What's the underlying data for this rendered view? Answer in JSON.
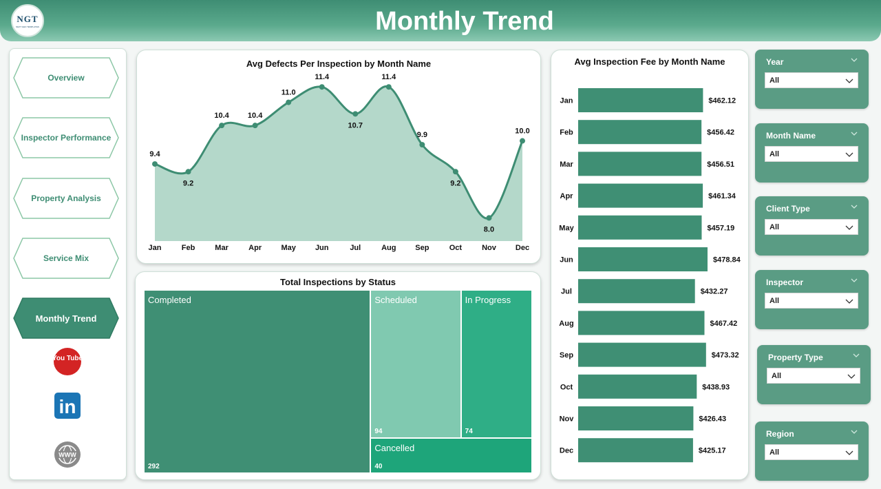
{
  "header": {
    "title": "Monthly Trend",
    "logo_text": "NGT",
    "logo_subtext": "NEXT GEN TEMPLATES"
  },
  "nav": {
    "items": [
      {
        "label": "Overview",
        "active": false
      },
      {
        "label": "Inspector Performance",
        "active": false
      },
      {
        "label": "Property Analysis",
        "active": false
      },
      {
        "label": "Service Mix",
        "active": false
      },
      {
        "label": "Monthly Trend",
        "active": true
      }
    ],
    "social": [
      {
        "icon": "youtube-icon",
        "text": "You Tube"
      },
      {
        "icon": "linkedin-icon",
        "text": "in"
      },
      {
        "icon": "globe-www-icon",
        "text": "WWW"
      }
    ]
  },
  "colors": {
    "accent": "#3e8d73",
    "area_fill": "#b4d8ca",
    "bar": "#3f8f74"
  },
  "chart_data": [
    {
      "type": "area",
      "title": "Avg Defects Per Inspection by Month Name",
      "categories": [
        "Jan",
        "Feb",
        "Mar",
        "Apr",
        "May",
        "Jun",
        "Jul",
        "Aug",
        "Sep",
        "Oct",
        "Nov",
        "Dec"
      ],
      "values": [
        9.4,
        9.2,
        10.4,
        10.4,
        11.0,
        11.4,
        10.7,
        11.4,
        9.9,
        9.2,
        8.0,
        10.0
      ],
      "labels": [
        "9.4",
        "9.2",
        "10.4",
        "10.4",
        "11.0",
        "11.4",
        "10.7",
        "11.4",
        "9.9",
        "9.2",
        "8.0",
        "10.0"
      ],
      "ylim": [
        7.4,
        11.6
      ]
    },
    {
      "type": "bar",
      "title": "Avg Inspection Fee by Month Name",
      "categories": [
        "Jan",
        "Feb",
        "Mar",
        "Apr",
        "May",
        "Jun",
        "Jul",
        "Aug",
        "Sep",
        "Oct",
        "Nov",
        "Dec"
      ],
      "values": [
        462.12,
        456.42,
        456.51,
        461.34,
        457.19,
        478.84,
        432.27,
        467.42,
        473.32,
        438.93,
        426.43,
        425.17
      ],
      "labels": [
        "$462.12",
        "$456.42",
        "$456.51",
        "$461.34",
        "$457.19",
        "$478.84",
        "$432.27",
        "$467.42",
        "$473.32",
        "$438.93",
        "$426.43",
        "$425.17"
      ],
      "xlim": [
        0,
        484
      ]
    },
    {
      "type": "treemap",
      "title": "Total Inspections by Status",
      "items": [
        {
          "name": "Completed",
          "value": 292,
          "label": "292",
          "color": "#3f8f74"
        },
        {
          "name": "Scheduled",
          "value": 94,
          "label": "94",
          "color": "#80c9b0"
        },
        {
          "name": "In Progress",
          "value": 74,
          "label": "74",
          "color": "#2fae86"
        },
        {
          "name": "Cancelled",
          "value": 40,
          "label": "40",
          "color": "#1ea57a"
        }
      ]
    }
  ],
  "slicers": [
    {
      "title": "Year",
      "value": "All"
    },
    {
      "title": "Month Name",
      "value": "All"
    },
    {
      "title": "Client Type",
      "value": "All"
    },
    {
      "title": "Inspector",
      "value": "All"
    },
    {
      "title": "Property Type",
      "value": "All"
    },
    {
      "title": "Region",
      "value": "All"
    }
  ]
}
